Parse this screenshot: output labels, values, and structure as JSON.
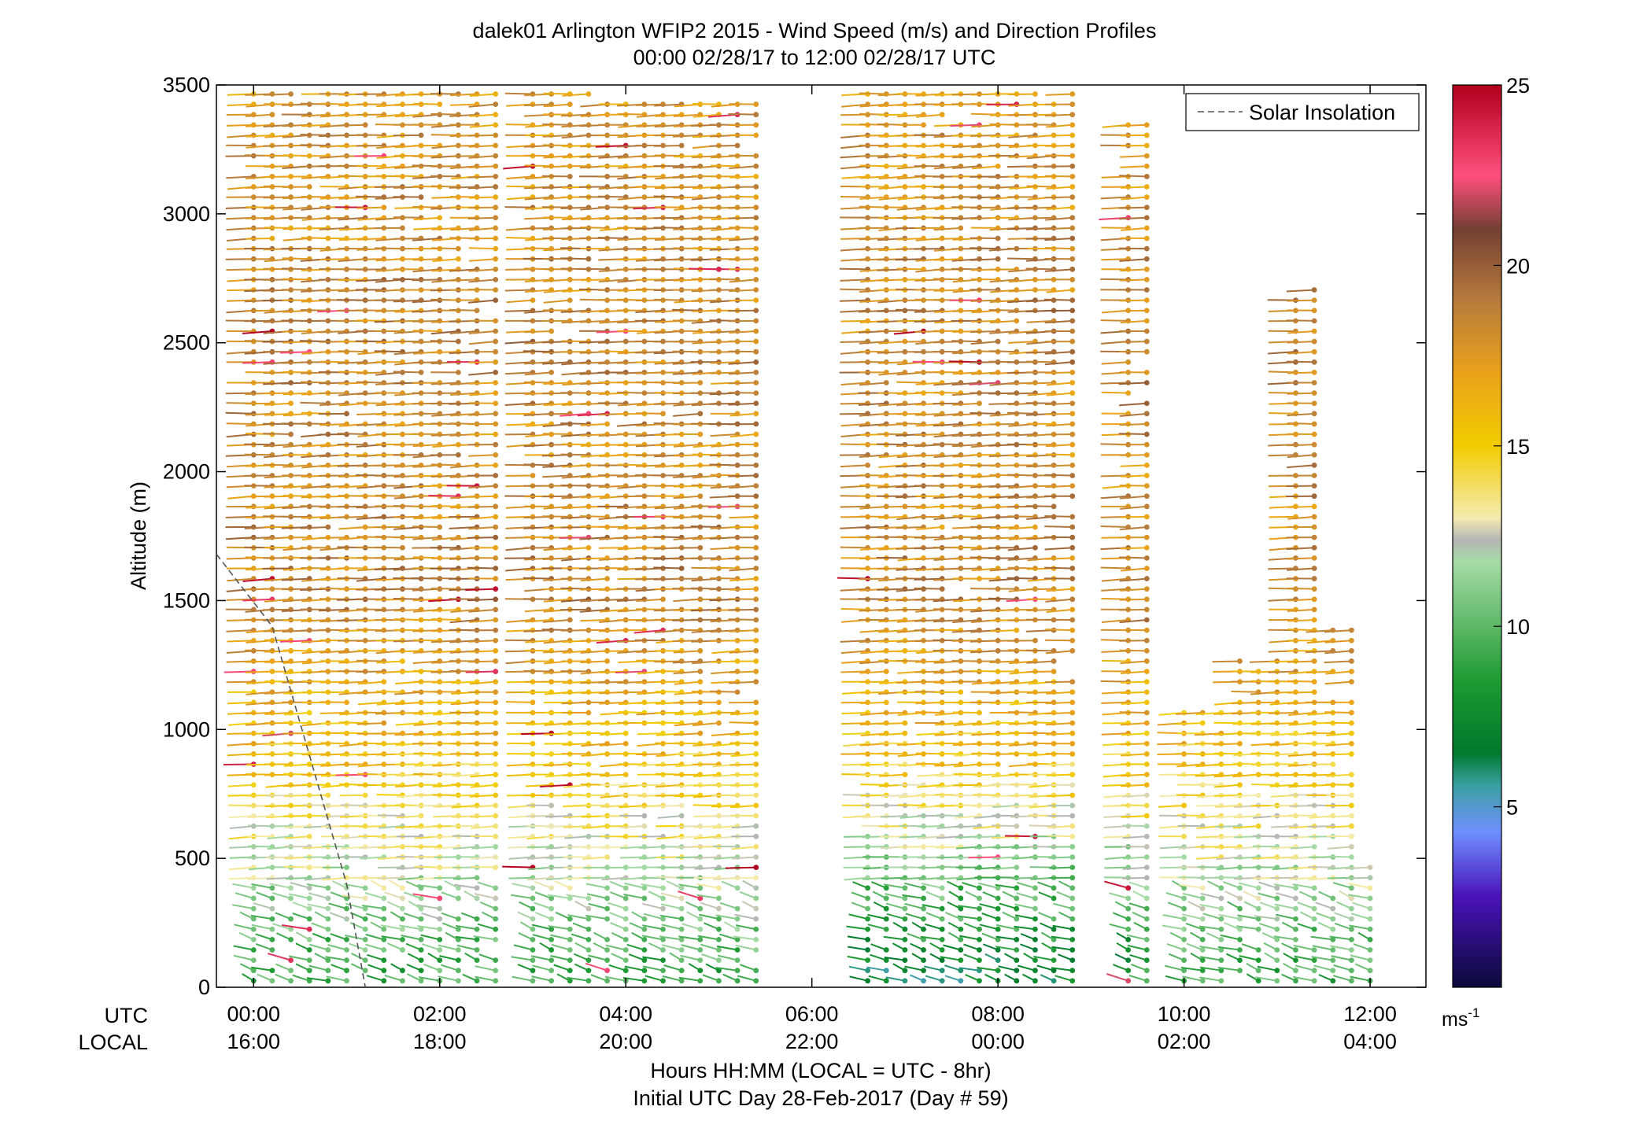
{
  "chart_data": {
    "type": "scatter",
    "title_line1": "dalek01 Arlington WFIP2 2015 - Wind Speed (m/s) and Direction Profiles",
    "title_line2": "00:00 02/28/17 to 12:00 02/28/17  UTC",
    "ylabel": "Altitude (m)",
    "xlabel_line1": "Hours HH:MM  (LOCAL = UTC - 8hr)",
    "xlabel_line2": "Initial UTC Day 28-Feb-2017 (Day # 59)",
    "xlim_hours": [
      -0.4,
      12.6
    ],
    "ylim": [
      0,
      3500
    ],
    "y_ticks": [
      0,
      500,
      1000,
      1500,
      2000,
      2500,
      3000,
      3500
    ],
    "x_ticks_hours": [
      0,
      2,
      4,
      6,
      8,
      10,
      12
    ],
    "utc_row_label": "UTC",
    "local_row_label": "LOCAL",
    "utc_tick_labels": [
      "00:00",
      "02:00",
      "04:00",
      "06:00",
      "08:00",
      "10:00",
      "12:00"
    ],
    "local_tick_labels": [
      "16:00",
      "18:00",
      "20:00",
      "22:00",
      "00:00",
      "02:00",
      "04:00"
    ],
    "legend": {
      "position": "top-right",
      "entries": [
        "Solar Insolation"
      ]
    },
    "solar_insolation": {
      "x_hours": [
        -0.4,
        0.2,
        1.0,
        1.2
      ],
      "altitude": [
        1680,
        1400,
        400,
        0
      ]
    },
    "colorbar": {
      "range": [
        0,
        25
      ],
      "ticks": [
        5,
        10,
        15,
        20,
        25
      ],
      "unit_label": "ms",
      "unit_exponent": "-1",
      "stops": [
        {
          "v": 0,
          "c": "#0a0a3a"
        },
        {
          "v": 2.5,
          "c": "#4a12b8"
        },
        {
          "v": 4.3,
          "c": "#6f8fff"
        },
        {
          "v": 5.6,
          "c": "#3aa0a0"
        },
        {
          "v": 6.5,
          "c": "#007a2c"
        },
        {
          "v": 8.5,
          "c": "#1e9a32"
        },
        {
          "v": 11.8,
          "c": "#a7dba6"
        },
        {
          "v": 12.4,
          "c": "#b4b4b4"
        },
        {
          "v": 13.0,
          "c": "#f4ecb0"
        },
        {
          "v": 15.0,
          "c": "#f2cc00"
        },
        {
          "v": 17.0,
          "c": "#eaa21a"
        },
        {
          "v": 19.0,
          "c": "#b87c3c"
        },
        {
          "v": 21.0,
          "c": "#744032"
        },
        {
          "v": 22.5,
          "c": "#ff4f7e"
        },
        {
          "v": 25.0,
          "c": "#b0001c"
        }
      ]
    },
    "wind_barbs": {
      "time_step_hours": 0.2,
      "altitude_step_m": 40,
      "description_of_fields": "t=time (hours UTC), z=altitude (m), s=speed (m/s), d=barb angle (deg)",
      "profiles": [
        {
          "t_from": 0.0,
          "t_to": 1.8,
          "z_top": 3470
        },
        {
          "t_from": 2.0,
          "t_to": 2.6,
          "z_top": 3470
        },
        {
          "t_from": 3.0,
          "t_to": 3.6,
          "z_top": 3470
        },
        {
          "t_from": 3.8,
          "t_to": 5.4,
          "z_top": 3450
        },
        {
          "t_from": 6.6,
          "t_to": 7.8,
          "z_top": 3470
        },
        {
          "t_from": 8.0,
          "t_to": 8.8,
          "z_top": 3470
        },
        {
          "t_from": 9.4,
          "t_to": 9.6,
          "z_top": 3380
        },
        {
          "t_from": 10.0,
          "t_to": 10.4,
          "z_top": 1080
        },
        {
          "t_from": 10.6,
          "t_to": 11.0,
          "z_top": 1270
        },
        {
          "t_from": 11.2,
          "t_to": 11.4,
          "z_top": 2740
        },
        {
          "t_from": 11.6,
          "t_to": 11.8,
          "z_top": 1410
        },
        {
          "t_from": 12.0,
          "t_to": 12.0,
          "z_top": 500
        }
      ],
      "speed_profile_by_altitude": [
        {
          "z": 0,
          "s": 9
        },
        {
          "z": 100,
          "s": 9.5
        },
        {
          "z": 300,
          "s": 11
        },
        {
          "z": 500,
          "s": 12.5
        },
        {
          "z": 700,
          "s": 14
        },
        {
          "z": 900,
          "s": 15.5
        },
        {
          "z": 1200,
          "s": 17
        },
        {
          "z": 1500,
          "s": 18.5
        },
        {
          "z": 2000,
          "s": 18
        },
        {
          "z": 2500,
          "s": 18.5
        },
        {
          "z": 3000,
          "s": 18
        },
        {
          "z": 3500,
          "s": 17.5
        }
      ]
    }
  }
}
